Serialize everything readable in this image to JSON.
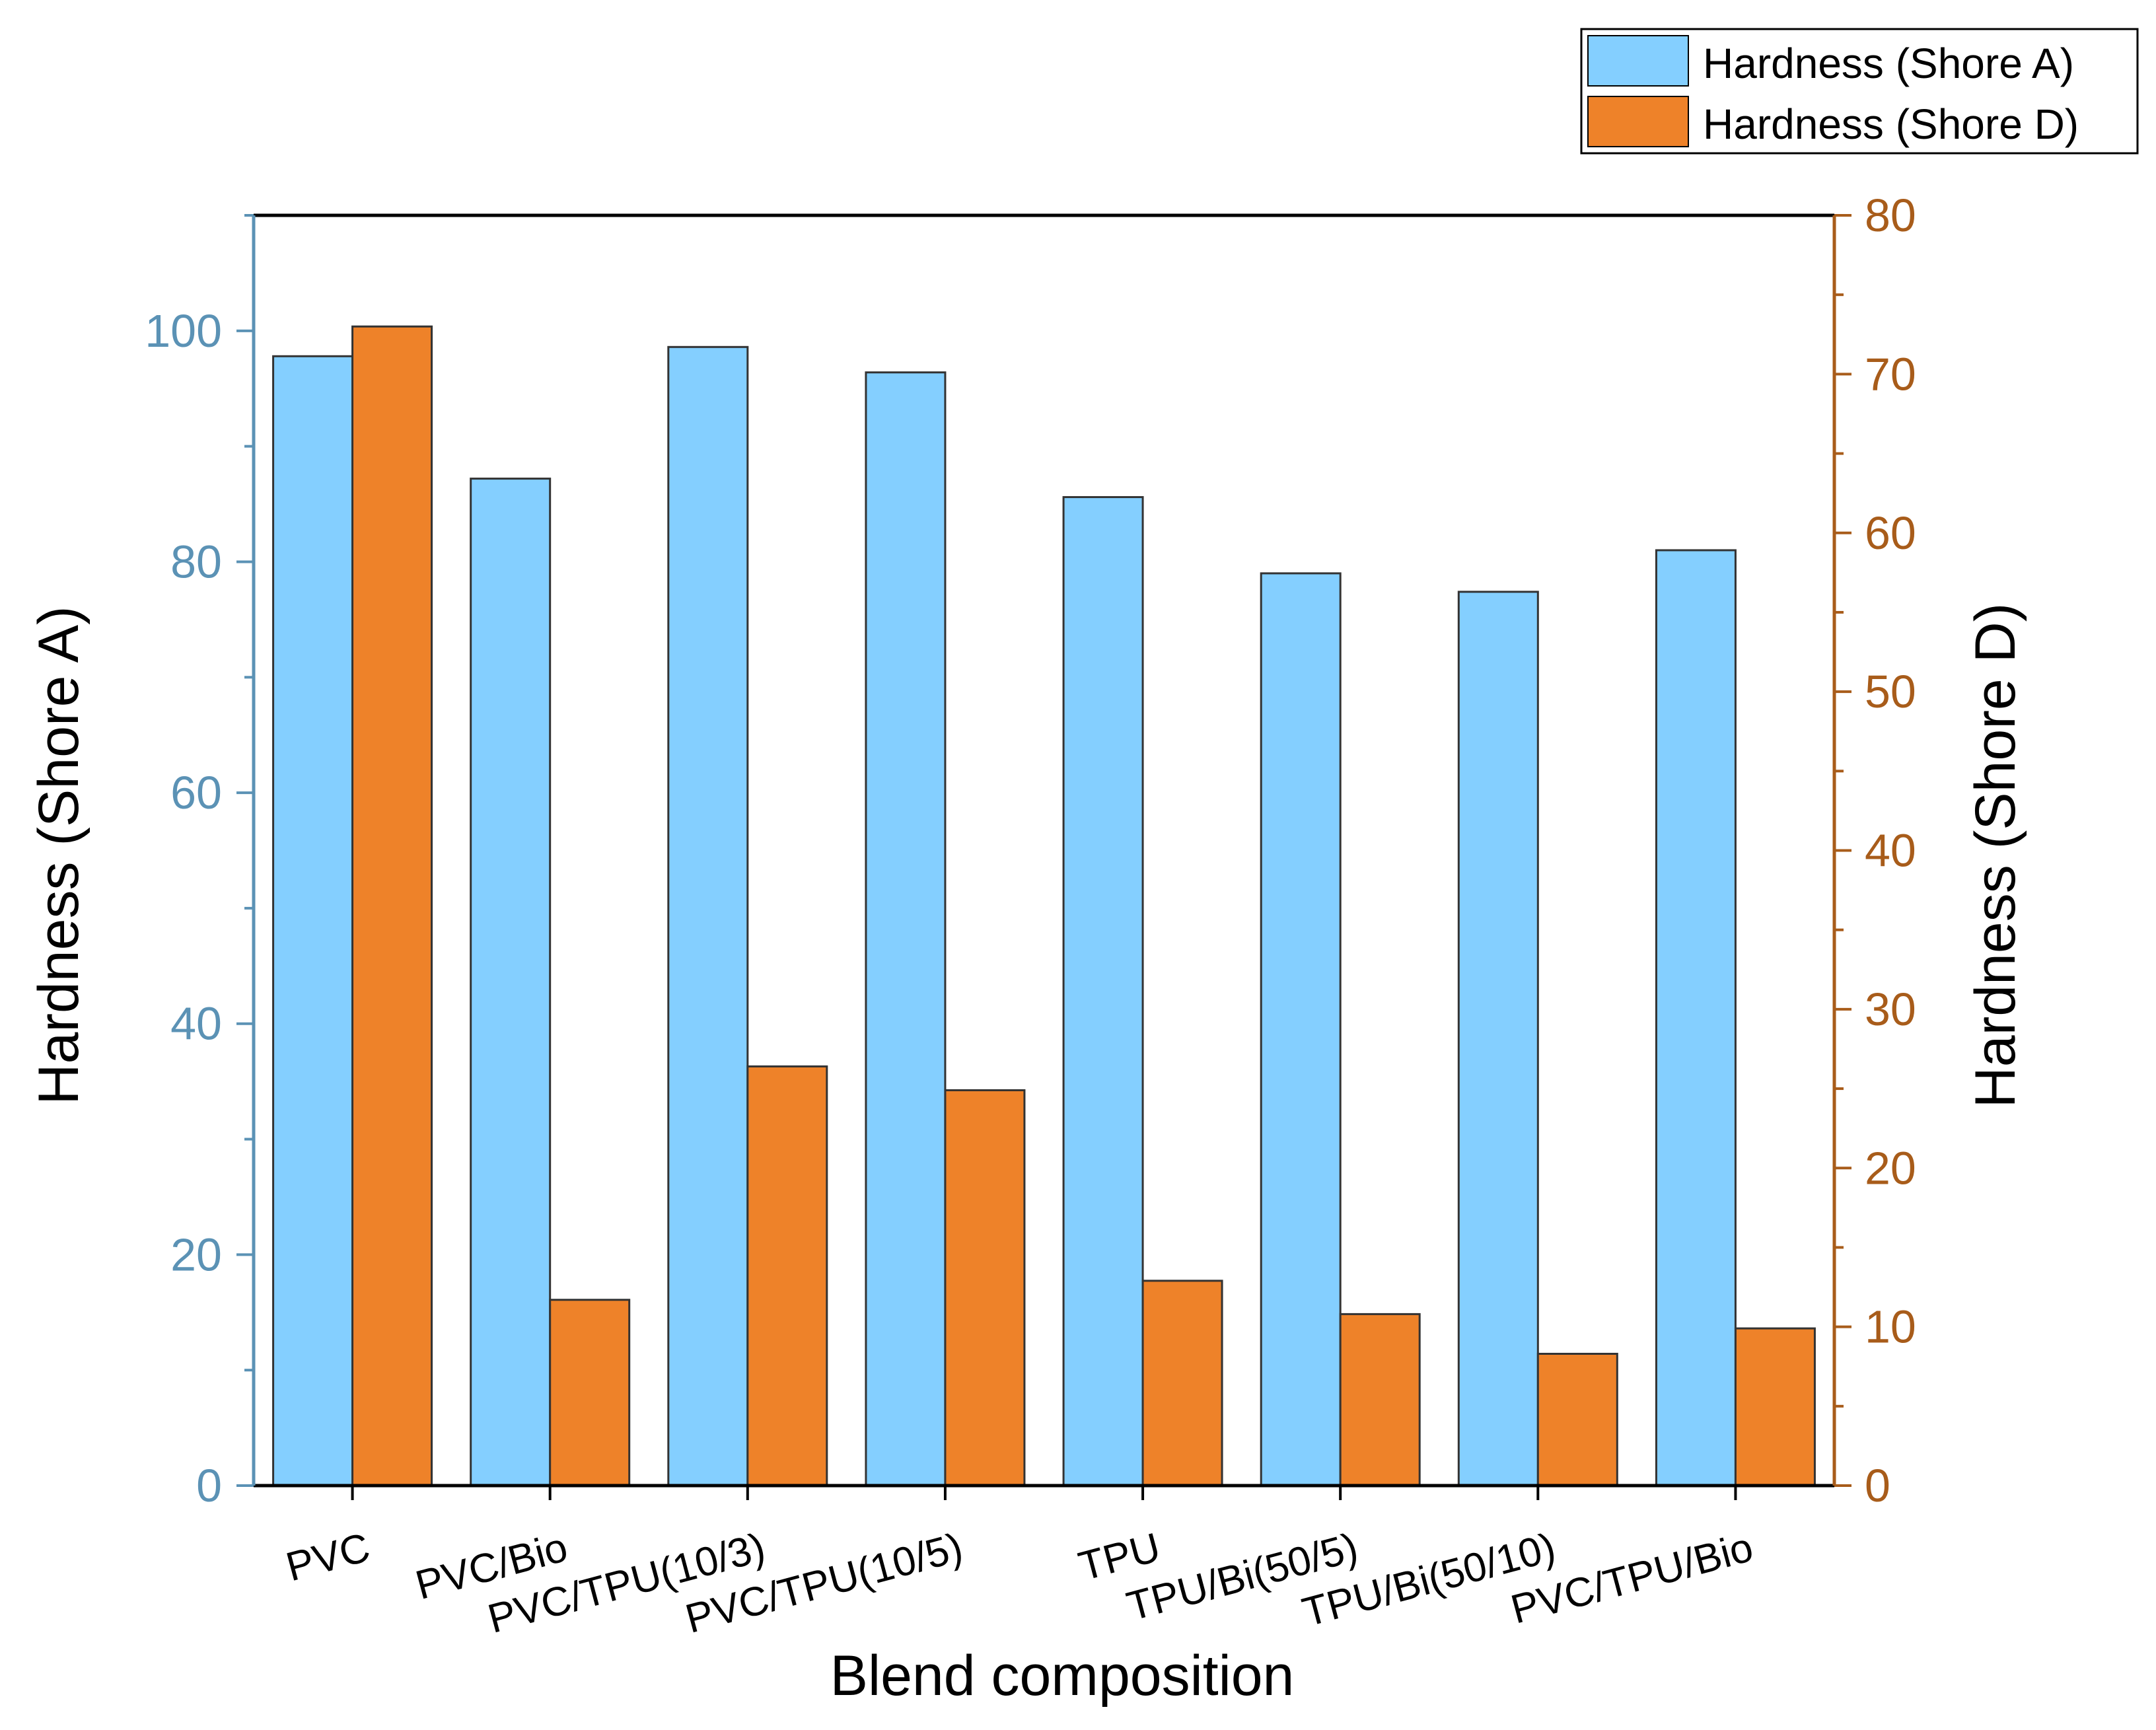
{
  "chart_data": {
    "type": "bar",
    "title": "",
    "xlabel": "Blend composition",
    "ylabel": "Hardness (Shore A)",
    "y2label": "Hardness (Shore D)",
    "categories": [
      "PVC",
      "PVC/Bio",
      "PVC/TPU(10/3)",
      "PVC/TPU(10/5)",
      "TPU",
      "TPU/Bi(50/5)",
      "TPU/Bi(50/10)",
      "PVC/TPU/Bio"
    ],
    "series": [
      {
        "name": "Hardness (Shore A)",
        "axis": "left",
        "color": "#84CFFF",
        "values": [
          97.8,
          87.2,
          98.6,
          96.4,
          85.6,
          79.0,
          77.4,
          81.0
        ]
      },
      {
        "name": "Hardness (Shore D)",
        "axis": "right",
        "color": "#EE8229",
        "values": [
          73.0,
          11.7,
          26.4,
          24.9,
          12.9,
          10.8,
          8.3,
          9.9
        ]
      }
    ],
    "ylim": [
      0,
      110
    ],
    "y2lim": [
      0,
      80
    ],
    "yticks": [
      0,
      20,
      40,
      60,
      80,
      100
    ],
    "y2ticks": [
      0,
      10,
      20,
      30,
      40,
      50,
      60,
      70,
      80
    ],
    "left_axis_color": "#5B92B5",
    "right_axis_color": "#A85C1A",
    "legend_position": "top-right",
    "grid": false
  }
}
